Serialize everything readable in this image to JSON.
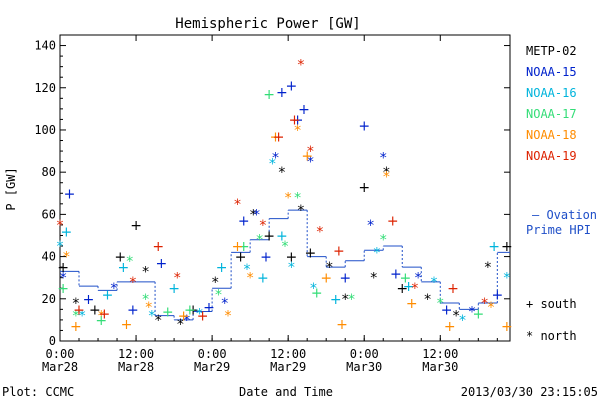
{
  "chart_data": {
    "type": "scatter",
    "title": "Hemispheric Power [GW]",
    "xlabel": "Date and Time",
    "ylabel": "P [GW]",
    "ylim": [
      0,
      145
    ],
    "xlim": [
      "2013-03-28T00:00",
      "2013-03-30T23:00"
    ],
    "yticks": [
      0,
      20,
      40,
      60,
      80,
      100,
      120,
      140
    ],
    "xticks": [
      {
        "t": "2013-03-28T00:00",
        "top": "0:00",
        "bottom": "Mar28"
      },
      {
        "t": "2013-03-28T12:00",
        "top": "12:00",
        "bottom": "Mar28"
      },
      {
        "t": "2013-03-29T00:00",
        "top": "0:00",
        "bottom": "Mar29"
      },
      {
        "t": "2013-03-29T12:00",
        "top": "12:00",
        "bottom": "Mar29"
      },
      {
        "t": "2013-03-30T00:00",
        "top": "0:00",
        "bottom": "Mar30"
      },
      {
        "t": "2013-03-30T12:00",
        "top": "12:00",
        "bottom": "Mar30"
      }
    ],
    "grid": false,
    "legend_position": "right",
    "marker_legend": {
      "south": "+ south",
      "north": "* north"
    },
    "series": [
      {
        "name": "METP-02",
        "color": "#000000",
        "points": [
          [
            "2013-03-28T00:30",
            35,
            "south"
          ],
          [
            "2013-03-28T02:30",
            18,
            "north"
          ],
          [
            "2013-03-28T05:30",
            15,
            "south"
          ],
          [
            "2013-03-28T09:30",
            40,
            "south"
          ],
          [
            "2013-03-28T12:00",
            55,
            "south"
          ],
          [
            "2013-03-28T13:30",
            33,
            "north"
          ],
          [
            "2013-03-28T15:30",
            10,
            "north"
          ],
          [
            "2013-03-28T19:00",
            8,
            "north"
          ],
          [
            "2013-03-28T21:00",
            15,
            "south"
          ],
          [
            "2013-03-29T00:30",
            28,
            "north"
          ],
          [
            "2013-03-29T04:30",
            40,
            "south"
          ],
          [
            "2013-03-29T06:30",
            60,
            "north"
          ],
          [
            "2013-03-29T09:00",
            50,
            "south"
          ],
          [
            "2013-03-29T11:00",
            80,
            "north"
          ],
          [
            "2013-03-29T12:30",
            40,
            "south"
          ],
          [
            "2013-03-29T14:00",
            62,
            "north"
          ],
          [
            "2013-03-29T15:30",
            42,
            "south"
          ],
          [
            "2013-03-29T18:30",
            35,
            "north"
          ],
          [
            "2013-03-29T21:00",
            20,
            "north"
          ],
          [
            "2013-03-30T00:00",
            73,
            "south"
          ],
          [
            "2013-03-30T01:30",
            30,
            "north"
          ],
          [
            "2013-03-30T03:30",
            80,
            "north"
          ],
          [
            "2013-03-30T06:00",
            25,
            "south"
          ],
          [
            "2013-03-30T10:00",
            20,
            "north"
          ],
          [
            "2013-03-30T14:30",
            12,
            "north"
          ],
          [
            "2013-03-30T19:30",
            35,
            "north"
          ],
          [
            "2013-03-30T22:30",
            45,
            "south"
          ]
        ]
      },
      {
        "name": "NOAA-15",
        "color": "#0022cc",
        "points": [
          [
            "2013-03-28T00:30",
            30,
            "north"
          ],
          [
            "2013-03-28T01:30",
            70,
            "south"
          ],
          [
            "2013-03-28T04:30",
            20,
            "south"
          ],
          [
            "2013-03-28T08:30",
            25,
            "north"
          ],
          [
            "2013-03-28T11:30",
            15,
            "south"
          ],
          [
            "2013-03-28T16:00",
            37,
            "south"
          ],
          [
            "2013-03-28T20:00",
            10,
            "north"
          ],
          [
            "2013-03-28T23:30",
            16,
            "south"
          ],
          [
            "2013-03-29T02:00",
            18,
            "north"
          ],
          [
            "2013-03-29T05:00",
            57,
            "south"
          ],
          [
            "2013-03-29T07:00",
            60,
            "north"
          ],
          [
            "2013-03-29T08:30",
            40,
            "south"
          ],
          [
            "2013-03-29T10:00",
            87,
            "north"
          ],
          [
            "2013-03-29T11:00",
            118,
            "south"
          ],
          [
            "2013-03-29T12:30",
            121,
            "south"
          ],
          [
            "2013-03-29T13:30",
            105,
            "south"
          ],
          [
            "2013-03-29T14:30",
            110,
            "south"
          ],
          [
            "2013-03-29T15:30",
            85,
            "north"
          ],
          [
            "2013-03-29T21:00",
            30,
            "south"
          ],
          [
            "2013-03-30T00:00",
            102,
            "south"
          ],
          [
            "2013-03-30T01:00",
            55,
            "north"
          ],
          [
            "2013-03-30T03:00",
            87,
            "north"
          ],
          [
            "2013-03-30T05:00",
            32,
            "south"
          ],
          [
            "2013-03-30T08:30",
            30,
            "north"
          ],
          [
            "2013-03-30T13:00",
            15,
            "south"
          ],
          [
            "2013-03-30T17:00",
            14,
            "north"
          ],
          [
            "2013-03-30T21:00",
            22,
            "south"
          ]
        ]
      },
      {
        "name": "NOAA-16",
        "color": "#00b4dc",
        "points": [
          [
            "2013-03-28T00:00",
            45,
            "north"
          ],
          [
            "2013-03-28T01:00",
            52,
            "south"
          ],
          [
            "2013-03-28T03:30",
            12,
            "north"
          ],
          [
            "2013-03-28T07:30",
            22,
            "south"
          ],
          [
            "2013-03-28T10:00",
            35,
            "south"
          ],
          [
            "2013-03-28T14:30",
            12,
            "north"
          ],
          [
            "2013-03-28T18:00",
            25,
            "south"
          ],
          [
            "2013-03-28T22:00",
            13,
            "north"
          ],
          [
            "2013-03-29T01:30",
            35,
            "south"
          ],
          [
            "2013-03-29T05:30",
            34,
            "north"
          ],
          [
            "2013-03-29T08:00",
            30,
            "south"
          ],
          [
            "2013-03-29T09:30",
            84,
            "north"
          ],
          [
            "2013-03-29T11:00",
            50,
            "south"
          ],
          [
            "2013-03-29T12:30",
            35,
            "north"
          ],
          [
            "2013-03-29T16:00",
            25,
            "north"
          ],
          [
            "2013-03-29T19:30",
            20,
            "south"
          ],
          [
            "2013-03-30T02:00",
            42,
            "north"
          ],
          [
            "2013-03-30T07:00",
            26,
            "south"
          ],
          [
            "2013-03-30T11:00",
            28,
            "north"
          ],
          [
            "2013-03-30T15:30",
            10,
            "north"
          ],
          [
            "2013-03-30T20:30",
            45,
            "south"
          ],
          [
            "2013-03-30T22:30",
            30,
            "north"
          ]
        ]
      },
      {
        "name": "NOAA-17",
        "color": "#33dd77",
        "points": [
          [
            "2013-03-28T00:30",
            25,
            "south"
          ],
          [
            "2013-03-28T02:30",
            12,
            "north"
          ],
          [
            "2013-03-28T06:30",
            10,
            "south"
          ],
          [
            "2013-03-28T11:00",
            38,
            "north"
          ],
          [
            "2013-03-28T13:30",
            20,
            "north"
          ],
          [
            "2013-03-28T17:00",
            14,
            "south"
          ],
          [
            "2013-03-28T20:30",
            15,
            "south"
          ],
          [
            "2013-03-29T01:00",
            22,
            "north"
          ],
          [
            "2013-03-29T05:00",
            45,
            "south"
          ],
          [
            "2013-03-29T07:30",
            48,
            "north"
          ],
          [
            "2013-03-29T09:00",
            117,
            "south"
          ],
          [
            "2013-03-29T11:30",
            45,
            "north"
          ],
          [
            "2013-03-29T13:30",
            68,
            "north"
          ],
          [
            "2013-03-29T16:30",
            23,
            "south"
          ],
          [
            "2013-03-29T22:00",
            20,
            "north"
          ],
          [
            "2013-03-30T03:00",
            48,
            "north"
          ],
          [
            "2013-03-30T06:30",
            30,
            "south"
          ],
          [
            "2013-03-30T12:00",
            18,
            "north"
          ],
          [
            "2013-03-30T18:00",
            13,
            "south"
          ]
        ]
      },
      {
        "name": "NOAA-18",
        "color": "#ff8c00",
        "points": [
          [
            "2013-03-28T01:00",
            40,
            "north"
          ],
          [
            "2013-03-28T02:30",
            7,
            "south"
          ],
          [
            "2013-03-28T06:30",
            12,
            "north"
          ],
          [
            "2013-03-28T10:30",
            8,
            "south"
          ],
          [
            "2013-03-28T14:00",
            16,
            "north"
          ],
          [
            "2013-03-28T19:30",
            12,
            "south"
          ],
          [
            "2013-03-29T02:30",
            12,
            "north"
          ],
          [
            "2013-03-29T04:00",
            45,
            "south"
          ],
          [
            "2013-03-29T06:00",
            30,
            "north"
          ],
          [
            "2013-03-29T10:00",
            97,
            "south"
          ],
          [
            "2013-03-29T12:00",
            68,
            "north"
          ],
          [
            "2013-03-29T13:30",
            100,
            "north"
          ],
          [
            "2013-03-29T15:00",
            88,
            "south"
          ],
          [
            "2013-03-29T18:00",
            30,
            "south"
          ],
          [
            "2013-03-29T20:30",
            8,
            "south"
          ],
          [
            "2013-03-30T03:30",
            78,
            "north"
          ],
          [
            "2013-03-30T07:30",
            18,
            "south"
          ],
          [
            "2013-03-30T13:30",
            7,
            "south"
          ],
          [
            "2013-03-30T20:00",
            16,
            "north"
          ],
          [
            "2013-03-30T22:30",
            7,
            "south"
          ]
        ]
      },
      {
        "name": "NOAA-19",
        "color": "#dd2200",
        "points": [
          [
            "2013-03-28T00:00",
            55,
            "north"
          ],
          [
            "2013-03-28T03:00",
            15,
            "south"
          ],
          [
            "2013-03-28T07:00",
            13,
            "south"
          ],
          [
            "2013-03-28T11:30",
            28,
            "north"
          ],
          [
            "2013-03-28T15:30",
            45,
            "south"
          ],
          [
            "2013-03-28T18:30",
            30,
            "north"
          ],
          [
            "2013-03-28T22:30",
            12,
            "south"
          ],
          [
            "2013-03-29T04:00",
            65,
            "north"
          ],
          [
            "2013-03-29T08:00",
            55,
            "north"
          ],
          [
            "2013-03-29T10:30",
            97,
            "south"
          ],
          [
            "2013-03-29T13:00",
            105,
            "south"
          ],
          [
            "2013-03-29T14:00",
            131,
            "north"
          ],
          [
            "2013-03-29T15:30",
            90,
            "north"
          ],
          [
            "2013-03-29T17:00",
            52,
            "north"
          ],
          [
            "2013-03-29T20:00",
            43,
            "south"
          ],
          [
            "2013-03-30T04:30",
            57,
            "south"
          ],
          [
            "2013-03-30T08:00",
            25,
            "north"
          ],
          [
            "2013-03-30T14:00",
            25,
            "south"
          ],
          [
            "2013-03-30T19:00",
            18,
            "north"
          ]
        ]
      }
    ],
    "ovation": {
      "name": "— Ovation Prime HPI",
      "color": "#1f4fc8",
      "values": [
        [
          "2013-03-28T00:00",
          33
        ],
        [
          "2013-03-28T03:00",
          26
        ],
        [
          "2013-03-28T06:00",
          24
        ],
        [
          "2013-03-28T09:00",
          28
        ],
        [
          "2013-03-28T12:00",
          28
        ],
        [
          "2013-03-28T15:00",
          12
        ],
        [
          "2013-03-28T18:00",
          10
        ],
        [
          "2013-03-28T21:00",
          14
        ],
        [
          "2013-03-29T00:00",
          25
        ],
        [
          "2013-03-29T03:00",
          42
        ],
        [
          "2013-03-29T06:00",
          48
        ],
        [
          "2013-03-29T09:00",
          58
        ],
        [
          "2013-03-29T12:00",
          62
        ],
        [
          "2013-03-29T15:00",
          40
        ],
        [
          "2013-03-29T18:00",
          35
        ],
        [
          "2013-03-29T21:00",
          38
        ],
        [
          "2013-03-30T00:00",
          43
        ],
        [
          "2013-03-30T03:00",
          45
        ],
        [
          "2013-03-30T06:00",
          35
        ],
        [
          "2013-03-30T09:00",
          28
        ],
        [
          "2013-03-30T12:00",
          18
        ],
        [
          "2013-03-30T15:00",
          15
        ],
        [
          "2013-03-30T18:00",
          18
        ],
        [
          "2013-03-30T21:00",
          42
        ]
      ]
    }
  },
  "footer": {
    "plot_source": "Plot: CCMC",
    "timestamp": "2013/03/30 23:15:05"
  },
  "legend": {
    "ovation_line1": "— Ovation",
    "ovation_line2": "Prime HPI",
    "south": "+ south",
    "north": "* north"
  }
}
